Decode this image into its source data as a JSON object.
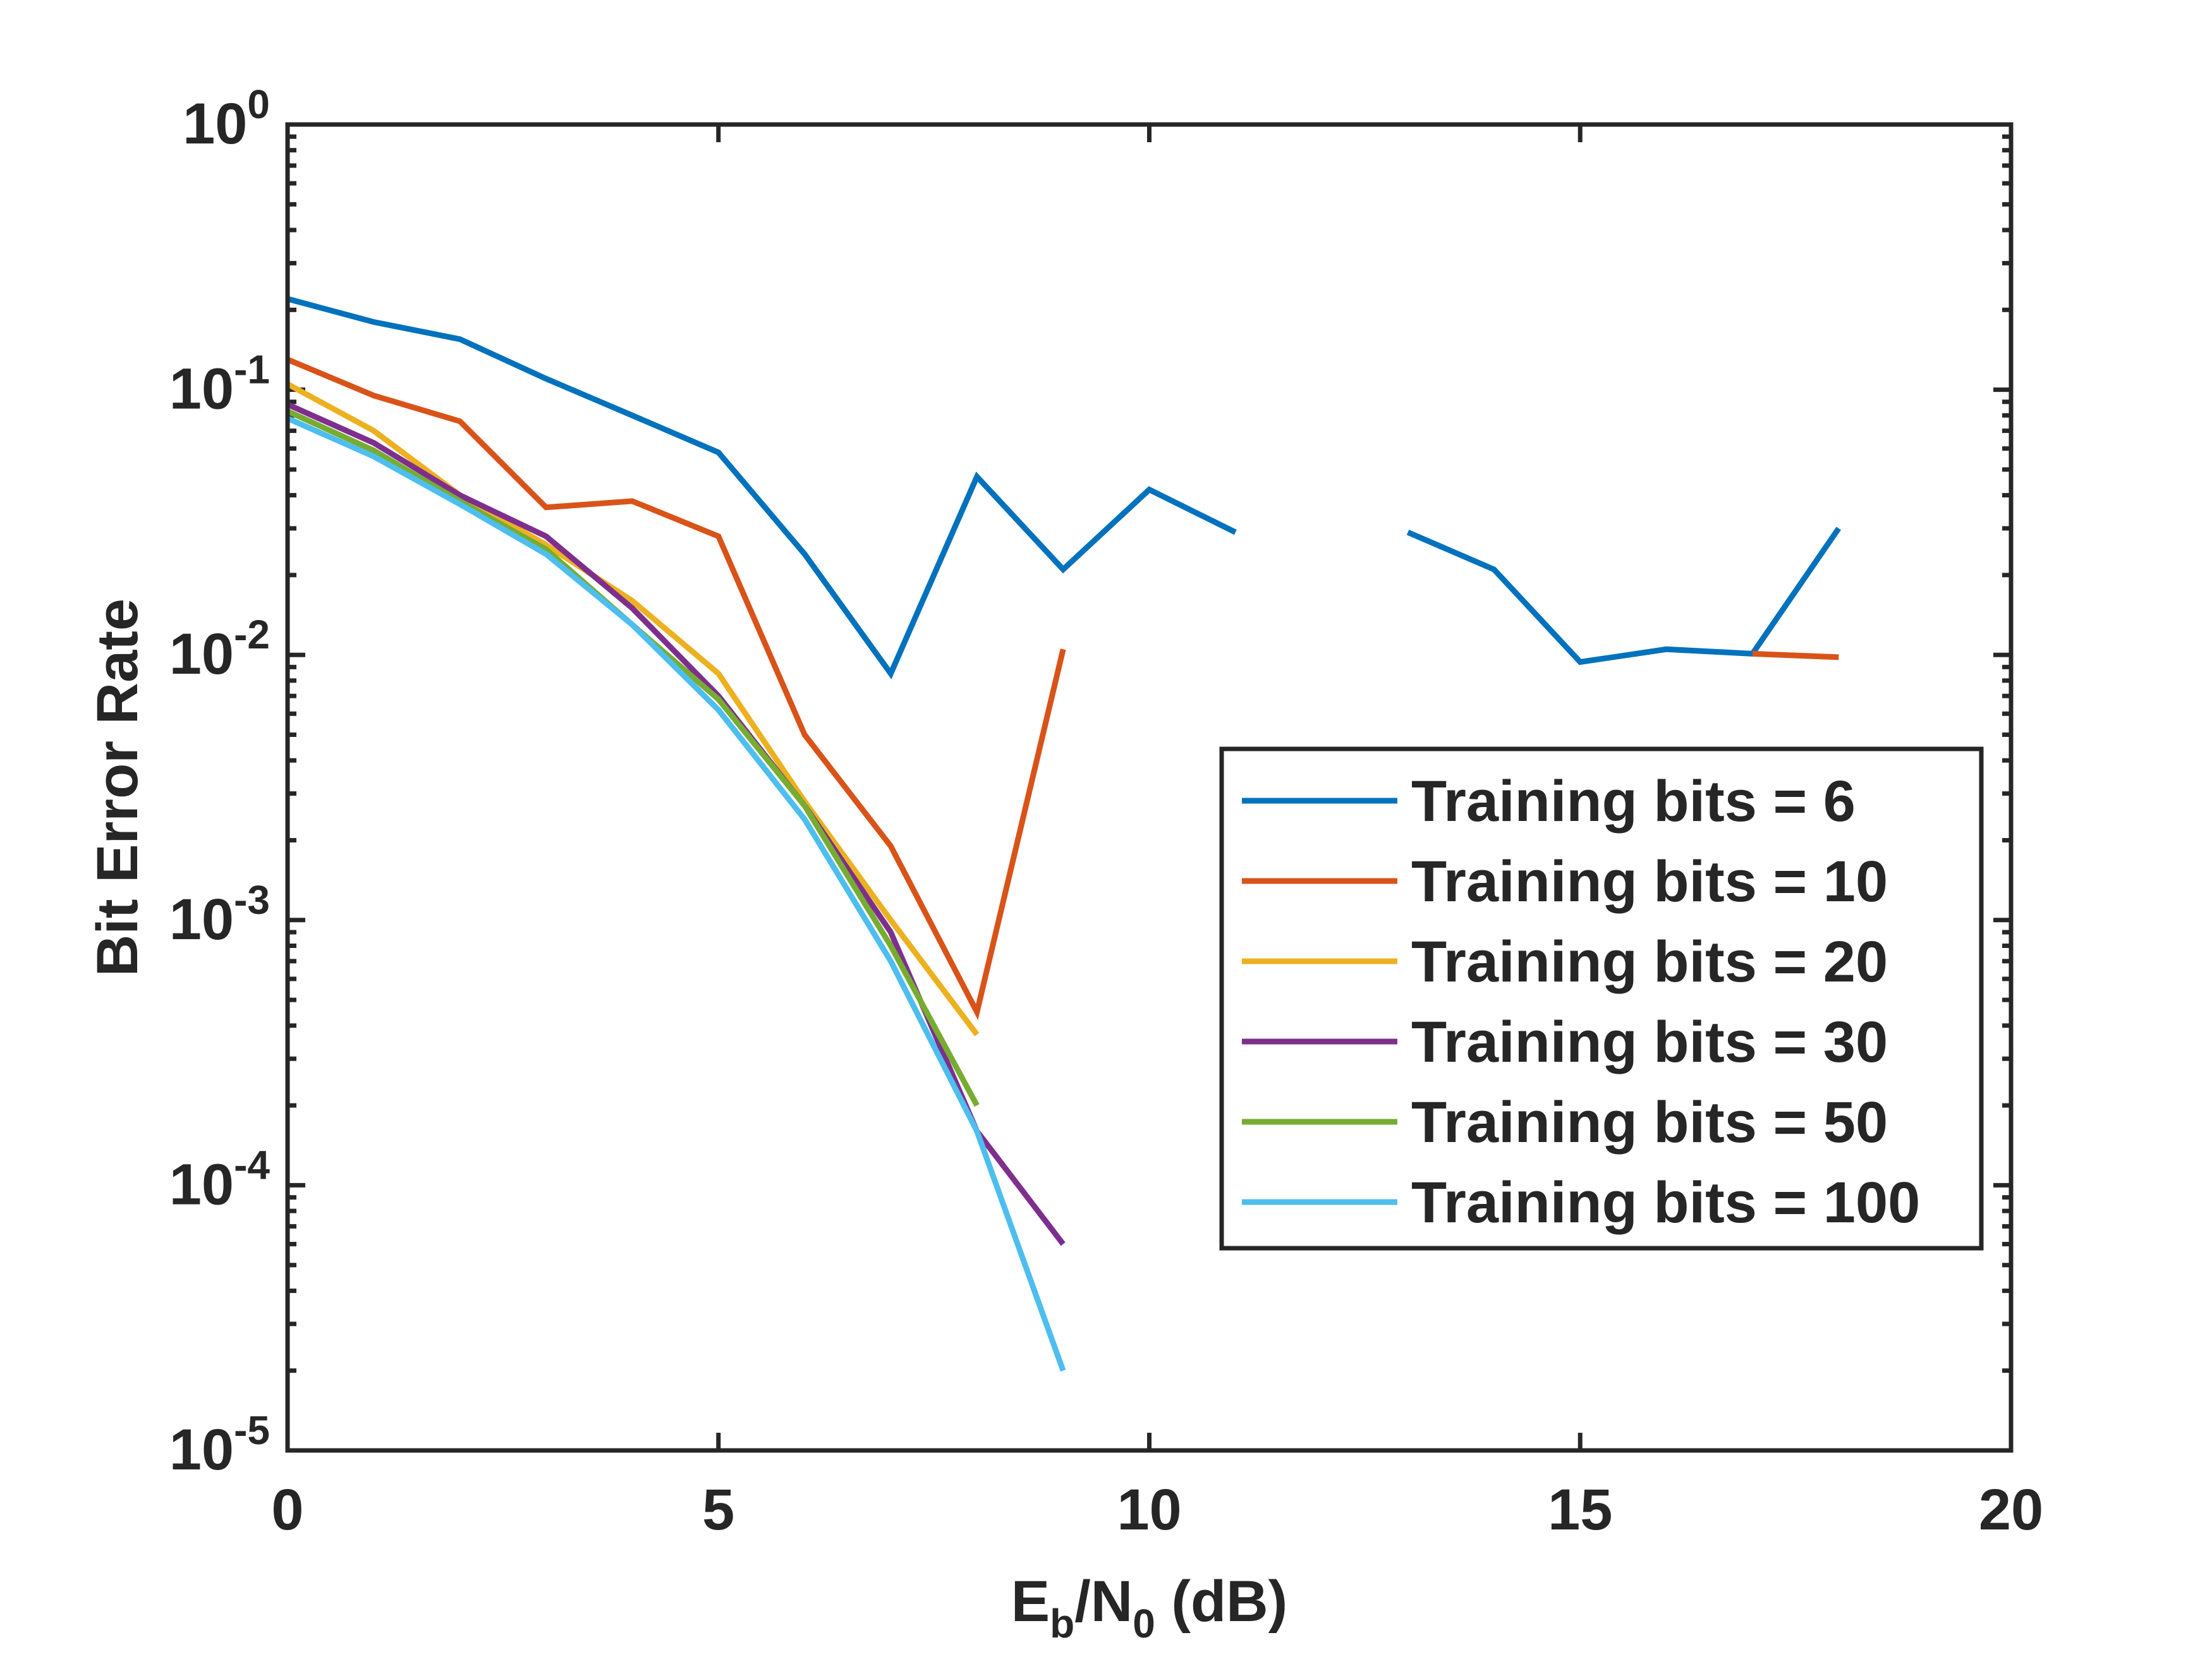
{
  "chart_data": {
    "type": "line",
    "xlabel": {
      "main": "E",
      "sub1": "b",
      "mid": "/N",
      "sub2": "0",
      "tail": " (dB)"
    },
    "ylabel": "Bit Error Rate",
    "xlim": [
      0,
      20
    ],
    "ylim": [
      1e-05,
      1
    ],
    "yscale": "log",
    "xticks": [
      0,
      5,
      10,
      15,
      20
    ],
    "xtick_labels": [
      "0",
      "5",
      "10",
      "15",
      "20"
    ],
    "yticks": [
      1e-05,
      0.0001,
      0.001,
      0.01,
      0.1,
      1
    ],
    "ytick_labels": [
      {
        "base": "10",
        "exp": "-5"
      },
      {
        "base": "10",
        "exp": "-4"
      },
      {
        "base": "10",
        "exp": "-3"
      },
      {
        "base": "10",
        "exp": "-2"
      },
      {
        "base": "10",
        "exp": "-1"
      },
      {
        "base": "10",
        "exp": "0"
      }
    ],
    "grid": false,
    "legend_position": "lower-right",
    "series": [
      {
        "name": "Training bits = 6",
        "color": "#0072BD",
        "points": [
          [
            0,
            0.22
          ],
          [
            1,
            0.18
          ],
          [
            2,
            0.155
          ],
          [
            3,
            0.11
          ],
          [
            4,
            0.08
          ],
          [
            5,
            0.058
          ],
          [
            6,
            0.024
          ],
          [
            7,
            0.0085
          ],
          [
            8,
            0.047
          ],
          [
            9,
            0.021
          ],
          [
            10,
            0.042
          ],
          [
            11,
            0.029
          ],
          null,
          [
            13,
            0.029
          ],
          [
            14,
            0.021
          ],
          [
            15,
            0.0094
          ],
          [
            16,
            0.0105
          ],
          [
            17,
            0.0101
          ],
          [
            18,
            0.03
          ]
        ]
      },
      {
        "name": "Training bits = 10",
        "color": "#D95319",
        "points": [
          [
            0,
            0.13
          ],
          [
            1,
            0.095
          ],
          [
            2,
            0.076
          ],
          [
            3,
            0.036
          ],
          [
            4,
            0.038
          ],
          [
            5,
            0.028
          ],
          [
            6,
            0.005
          ],
          [
            7,
            0.0019
          ],
          [
            8,
            0.00045
          ],
          [
            9,
            0.0105
          ],
          null,
          [
            17,
            0.0101
          ],
          [
            18,
            0.0098
          ]
        ]
      },
      {
        "name": "Training bits = 20",
        "color": "#EDB120",
        "points": [
          [
            0,
            0.105
          ],
          [
            1,
            0.07
          ],
          [
            2,
            0.04
          ],
          [
            3,
            0.026
          ],
          [
            4,
            0.016
          ],
          [
            5,
            0.0085
          ],
          [
            6,
            0.0028
          ],
          [
            7,
            0.001
          ],
          [
            8,
            0.00037
          ]
        ]
      },
      {
        "name": "Training bits = 30",
        "color": "#7E2F8E",
        "points": [
          [
            0,
            0.088
          ],
          [
            1,
            0.063
          ],
          [
            2,
            0.04
          ],
          [
            3,
            0.028
          ],
          [
            4,
            0.015
          ],
          [
            5,
            0.007
          ],
          [
            6,
            0.0027
          ],
          [
            7,
            0.0009
          ],
          [
            8,
            0.00016
          ],
          [
            9,
            6e-05
          ]
        ]
      },
      {
        "name": "Training bits = 50",
        "color": "#77AC30",
        "points": [
          [
            0,
            0.083
          ],
          [
            1,
            0.059
          ],
          [
            2,
            0.038
          ],
          [
            3,
            0.025
          ],
          [
            4,
            0.013
          ],
          [
            5,
            0.0068
          ],
          [
            6,
            0.0027
          ],
          [
            7,
            0.0008
          ],
          [
            8,
            0.0002
          ]
        ]
      },
      {
        "name": "Training bits = 100",
        "color": "#4DBEEE",
        "points": [
          [
            0,
            0.078
          ],
          [
            1,
            0.056
          ],
          [
            2,
            0.037
          ],
          [
            3,
            0.024
          ],
          [
            4,
            0.013
          ],
          [
            5,
            0.0062
          ],
          [
            6,
            0.0024
          ],
          [
            7,
            0.0007
          ],
          [
            8,
            0.00016
          ],
          [
            9,
            2e-05
          ]
        ]
      }
    ]
  }
}
